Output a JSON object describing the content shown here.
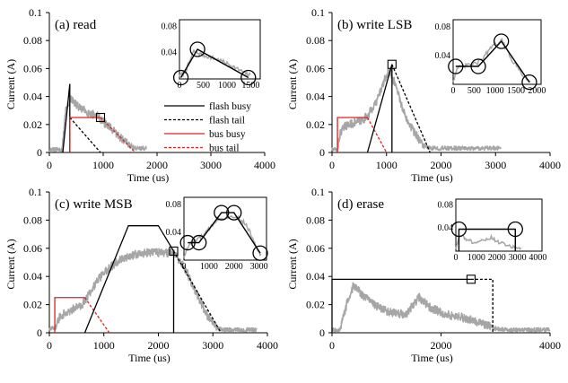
{
  "colors": {
    "measured": "#a6a6a6",
    "flash": "#000000",
    "bus": "#e02020"
  },
  "legend": [
    {
      "label": "flash busy",
      "color": "#000000",
      "dash": false
    },
    {
      "label": "flash tail",
      "color": "#000000",
      "dash": true
    },
    {
      "label": "bus  busy",
      "color": "#e02020",
      "dash": false
    },
    {
      "label": "bus tail",
      "color": "#e02020",
      "dash": true
    }
  ],
  "chart_data": [
    {
      "id": "a",
      "type": "line",
      "title": "(a) read",
      "xlabel": "Time (us)",
      "ylabel": "Current (A)",
      "xlim": [
        0,
        4000
      ],
      "ylim": [
        0,
        0.1
      ],
      "xticks": [
        "0",
        "1000",
        "2000",
        "3000",
        "4000"
      ],
      "yticks": [
        "0",
        "0.02",
        "0.04",
        "0.06",
        "0.08",
        "0.1"
      ],
      "measured": {
        "start": 0,
        "end": 1800,
        "x": [
          0,
          150,
          240,
          300,
          400,
          550,
          750,
          900,
          1000,
          1200,
          1400,
          1600,
          1800
        ],
        "y": [
          0.002,
          0.002,
          0.002,
          0.03,
          0.038,
          0.032,
          0.028,
          0.026,
          0.022,
          0.015,
          0.008,
          0.003,
          0.003
        ]
      },
      "overlays": [
        {
          "name": "flash busy",
          "color": "#000000",
          "dash": false,
          "x": [
            250,
            380,
            380
          ],
          "y": [
            0,
            0.049,
            0
          ]
        },
        {
          "name": "flash tail",
          "color": "#000000",
          "dash": true,
          "x": [
            380,
            950
          ],
          "y": [
            0.025,
            0
          ]
        },
        {
          "name": "bus busy",
          "color": "#e02020",
          "dash": false,
          "x": [
            380,
            380,
            950
          ],
          "y": [
            0,
            0.025,
            0.025
          ]
        },
        {
          "name": "bus tail",
          "color": "#e02020",
          "dash": true,
          "x": [
            950,
            1600
          ],
          "y": [
            0.025,
            0
          ]
        }
      ],
      "square": {
        "x": 950,
        "y": 0.025
      },
      "inset": {
        "xlim": [
          0,
          1700
        ],
        "ylim": [
          0,
          0.09
        ],
        "xticks": [
          "0",
          "500",
          "1000",
          "1500"
        ],
        "yticks": [
          "0.04",
          "0.08"
        ],
        "gray": {
          "x": [
            0,
            120,
            300,
            500,
            800,
            1100,
            1400,
            1500
          ],
          "y": [
            0.005,
            0.01,
            0.042,
            0.036,
            0.03,
            0.02,
            0.008,
            0.005
          ]
        },
        "black": {
          "x": [
            30,
            380,
            1450
          ],
          "y": [
            0.002,
            0.045,
            0.002
          ]
        },
        "circles": [
          {
            "x": 30,
            "y": 0.002
          },
          {
            "x": 380,
            "y": 0.045
          },
          {
            "x": 1450,
            "y": 0.002
          }
        ]
      }
    },
    {
      "id": "b",
      "type": "line",
      "title": "(b) write LSB",
      "xlabel": "Time (us)",
      "ylabel": "Current (A)",
      "xlim": [
        0,
        4000
      ],
      "ylim": [
        0,
        0.1
      ],
      "xticks": [
        "0",
        "1000",
        "2000",
        "3000",
        "4000"
      ],
      "yticks": [
        "0",
        "0.02",
        "0.04",
        "0.06",
        "0.08",
        "0.1"
      ],
      "measured": {
        "start": 0,
        "end": 3100,
        "x": [
          0,
          100,
          150,
          250,
          400,
          550,
          650,
          800,
          950,
          1050,
          1200,
          1300,
          1500,
          1700,
          1800,
          2200,
          2600,
          3100
        ],
        "y": [
          0.002,
          0.002,
          0.014,
          0.019,
          0.021,
          0.023,
          0.026,
          0.035,
          0.05,
          0.059,
          0.045,
          0.03,
          0.015,
          0.004,
          0.003,
          0.003,
          0.003,
          0.003
        ]
      },
      "overlays": [
        {
          "name": "bus busy",
          "color": "#e02020",
          "dash": false,
          "x": [
            100,
            100,
            650
          ],
          "y": [
            0,
            0.025,
            0.025
          ]
        },
        {
          "name": "bus tail",
          "color": "#e02020",
          "dash": true,
          "x": [
            650,
            1000
          ],
          "y": [
            0.025,
            0
          ]
        },
        {
          "name": "flash busy",
          "color": "#000000",
          "dash": false,
          "x": [
            650,
            1100,
            1100
          ],
          "y": [
            0,
            0.063,
            0
          ]
        },
        {
          "name": "flash tail",
          "color": "#000000",
          "dash": true,
          "x": [
            1100,
            1800
          ],
          "y": [
            0.063,
            0
          ]
        }
      ],
      "square": {
        "x": 1100,
        "y": 0.063
      },
      "inset": {
        "xlim": [
          0,
          2100
        ],
        "ylim": [
          0,
          0.09
        ],
        "xticks": [
          "0",
          "500",
          "1000",
          "1500",
          "2000"
        ],
        "yticks": [
          "0.04",
          "0.08"
        ],
        "gray": {
          "x": [
            0,
            100,
            300,
            600,
            900,
            1150,
            1400,
            1700,
            1850
          ],
          "y": [
            0.005,
            0.022,
            0.026,
            0.03,
            0.05,
            0.062,
            0.035,
            0.01,
            0.005
          ]
        },
        "black": {
          "x": [
            60,
            600,
            1150,
            1820
          ],
          "y": [
            0.025,
            0.025,
            0.06,
            0.003
          ]
        },
        "circles": [
          {
            "x": 60,
            "y": 0.025
          },
          {
            "x": 600,
            "y": 0.025
          },
          {
            "x": 1150,
            "y": 0.06
          },
          {
            "x": 1820,
            "y": 0.003
          }
        ]
      }
    },
    {
      "id": "c",
      "type": "line",
      "title": "(c) write MSB",
      "xlabel": "Time (us)",
      "ylabel": "Current (A)",
      "xlim": [
        0,
        4000
      ],
      "ylim": [
        0,
        0.1
      ],
      "xticks": [
        "0",
        "1000",
        "2000",
        "3000",
        "4000"
      ],
      "yticks": [
        "0",
        "0.02",
        "0.04",
        "0.06",
        "0.08",
        "0.1"
      ],
      "measured": {
        "start": 0,
        "end": 3800,
        "x": [
          0,
          100,
          200,
          400,
          600,
          700,
          900,
          1100,
          1300,
          1500,
          1800,
          2100,
          2300,
          2500,
          2700,
          2900,
          3100,
          3200,
          3500,
          3800
        ],
        "y": [
          0.002,
          0.004,
          0.012,
          0.016,
          0.02,
          0.026,
          0.038,
          0.046,
          0.052,
          0.055,
          0.057,
          0.057,
          0.056,
          0.045,
          0.028,
          0.012,
          0.003,
          0.002,
          0.002,
          0.002
        ]
      },
      "overlays": [
        {
          "name": "bus busy",
          "color": "#e02020",
          "dash": false,
          "x": [
            100,
            100,
            650
          ],
          "y": [
            0,
            0.025,
            0.025
          ]
        },
        {
          "name": "bus tail",
          "color": "#e02020",
          "dash": true,
          "x": [
            650,
            1100
          ],
          "y": [
            0.025,
            0
          ]
        },
        {
          "name": "flash busy",
          "color": "#000000",
          "dash": false,
          "x": [
            650,
            1450,
            2000,
            2280,
            2280
          ],
          "y": [
            0,
            0.076,
            0.076,
            0.058,
            0
          ]
        },
        {
          "name": "flash tail",
          "color": "#000000",
          "dash": true,
          "x": [
            2280,
            3150
          ],
          "y": [
            0.058,
            0
          ]
        }
      ],
      "square": {
        "x": 2280,
        "y": 0.058
      },
      "inset": {
        "xlim": [
          0,
          3300
        ],
        "ylim": [
          0,
          0.09
        ],
        "xticks": [
          "0",
          "1000",
          "2000",
          "3000"
        ],
        "yticks": [
          "0.04",
          "0.08"
        ],
        "gray": {
          "x": [
            0,
            200,
            500,
            900,
            1300,
            1700,
            2100,
            2500,
            2900,
            3100
          ],
          "y": [
            0.005,
            0.022,
            0.028,
            0.04,
            0.058,
            0.062,
            0.063,
            0.05,
            0.02,
            0.005
          ]
        },
        "black": {
          "x": [
            150,
            600,
            1500,
            2000,
            3050
          ],
          "y": [
            0.025,
            0.025,
            0.068,
            0.068,
            0.01
          ]
        },
        "circles": [
          {
            "x": 150,
            "y": 0.025
          },
          {
            "x": 600,
            "y": 0.025
          },
          {
            "x": 1500,
            "y": 0.068
          },
          {
            "x": 2000,
            "y": 0.068
          },
          {
            "x": 3050,
            "y": 0.01
          }
        ]
      }
    },
    {
      "id": "d",
      "type": "line",
      "title": "(d) erase",
      "xlabel": "Time (us)",
      "ylabel": "Current (A)",
      "xlim": [
        0,
        4000
      ],
      "ylim": [
        0,
        0.1
      ],
      "xticks": [
        "0",
        "2000",
        "4000"
      ],
      "yticks": [
        "0",
        "0.02",
        "0.04",
        "0.06",
        "0.08",
        "0.1"
      ],
      "measured": {
        "start": 0,
        "end": 4000,
        "x": [
          0,
          150,
          300,
          400,
          550,
          800,
          1100,
          1350,
          1500,
          1600,
          1800,
          2100,
          2500,
          2800,
          3000,
          3200,
          3600,
          4000
        ],
        "y": [
          0.002,
          0.002,
          0.025,
          0.034,
          0.027,
          0.019,
          0.014,
          0.013,
          0.02,
          0.025,
          0.018,
          0.013,
          0.01,
          0.006,
          0.003,
          0.002,
          0.002,
          0.002
        ]
      },
      "overlays": [
        {
          "name": "flash busy",
          "color": "#000000",
          "dash": false,
          "x": [
            0,
            0,
            2550
          ],
          "y": [
            0,
            0.038,
            0.038
          ]
        },
        {
          "name": "flash tail",
          "color": "#000000",
          "dash": true,
          "x": [
            2550,
            2950,
            2950
          ],
          "y": [
            0.038,
            0.038,
            0
          ]
        }
      ],
      "square": {
        "x": 2550,
        "y": 0.038
      },
      "inset": {
        "xlim": [
          0,
          4200
        ],
        "ylim": [
          0,
          0.09
        ],
        "xticks": [
          "0",
          "1000",
          "2000",
          "3000",
          "4000"
        ],
        "yticks": [
          "0.04",
          "0.08"
        ],
        "gray": {
          "x": [
            0,
            200,
            500,
            900,
            1300,
            1700,
            2100,
            2500,
            2900,
            3200
          ],
          "y": [
            0.005,
            0.03,
            0.02,
            0.015,
            0.018,
            0.024,
            0.015,
            0.01,
            0.006,
            0.004
          ]
        },
        "black": {
          "x": [
            150,
            150,
            2900,
            2900
          ],
          "y": [
            0,
            0.038,
            0.038,
            0
          ]
        },
        "circles": [
          {
            "x": 150,
            "y": 0.038
          },
          {
            "x": 2900,
            "y": 0.038
          }
        ]
      }
    }
  ]
}
